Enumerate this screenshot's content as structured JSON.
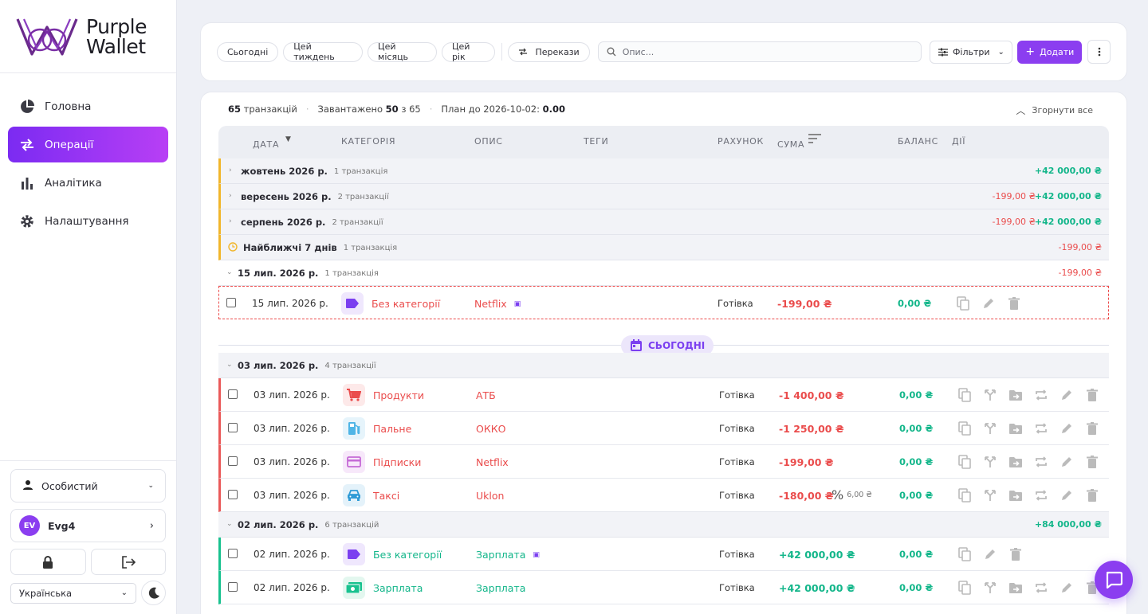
{
  "brand": {
    "line1": "Purple",
    "line2": "Wallet"
  },
  "nav": [
    {
      "label": "Головна",
      "icon": "pie-chart-icon"
    },
    {
      "label": "Операції",
      "icon": "swap-arrows-icon",
      "active": true
    },
    {
      "label": "Аналітика",
      "icon": "bar-chart-icon"
    },
    {
      "label": "Налаштування",
      "icon": "gear-icon"
    }
  ],
  "sidebar_bottom": {
    "profile": "Особистий",
    "user_initials": "EV",
    "user_name": "Evg4",
    "language": "Українська"
  },
  "toolbar": {
    "chips": [
      "Сьогодні",
      "Цей тиждень",
      "Цей місяць",
      "Цей рік"
    ],
    "transfers": "Перекази",
    "search_placeholder": "Опис...",
    "filters": "Фільтри",
    "add": "Додати"
  },
  "summary": {
    "count": "65",
    "count_label": "транзакцій",
    "loaded_label": "Завантажено",
    "loaded": "50",
    "of_label": "з",
    "total": "65",
    "plan_label": "План до 2026-10-02:",
    "plan_value": "0.00",
    "collapse_all": "Згорнути все"
  },
  "columns": [
    "Дата",
    "Категорія",
    "Опис",
    "Теги",
    "Рахунок",
    "Сума",
    "Баланс",
    "Дії"
  ],
  "groups_future": [
    {
      "label": "жовтень 2026 р.",
      "count": "1 транзакція",
      "neg": "",
      "pos": "+42 000,00 ₴"
    },
    {
      "label": "вересень 2026 р.",
      "count": "2 транзакції",
      "neg": "-199,00 ₴",
      "pos": "+42 000,00 ₴"
    },
    {
      "label": "серпень 2026 р.",
      "count": "2 транзакції",
      "neg": "-199,00 ₴",
      "pos": "+42 000,00 ₴"
    },
    {
      "label": "Найближчі 7 днів",
      "count": "1 транзакція",
      "neg": "-199,00 ₴",
      "pos": ""
    }
  ],
  "group_jul15": {
    "label": "15 лип. 2026 р.",
    "count": "1 транзакція",
    "neg": "-199,00 ₴"
  },
  "planned_tx": {
    "date": "15 лип. 2026 р.",
    "category": "Без категорії",
    "desc": "Netflix",
    "account": "Готівка",
    "sum": "-199,00 ₴",
    "balance": "0,00 ₴"
  },
  "today_label": "СЬОГОДНІ",
  "group_jul03": {
    "label": "03 лип. 2026 р.",
    "count": "4 транзакції"
  },
  "tx_jul03": [
    {
      "date": "03 лип. 2026 р.",
      "category": "Продукти",
      "icon": "cart-icon",
      "icon_color": "#ea4c4c",
      "icon_bg": "#fde9e9",
      "desc": "АТБ",
      "account": "Готівка",
      "sum": "-1 400,00 ₴",
      "balance": "0,00 ₴"
    },
    {
      "date": "03 лип. 2026 р.",
      "category": "Пальне",
      "icon": "fuel-icon",
      "icon_color": "#4fb5e6",
      "icon_bg": "#e6f4fb",
      "desc": "ОККО",
      "account": "Готівка",
      "sum": "-1 250,00 ₴",
      "balance": "0,00 ₴"
    },
    {
      "date": "03 лип. 2026 р.",
      "category": "Підписки",
      "icon": "card-icon",
      "icon_color": "#c56ad6",
      "icon_bg": "#f7e8fa",
      "desc": "Netflix",
      "account": "Готівка",
      "sum": "-199,00 ₴",
      "balance": "0,00 ₴"
    },
    {
      "date": "03 лип. 2026 р.",
      "category": "Таксі",
      "icon": "car-icon",
      "icon_color": "#2f9bd6",
      "icon_bg": "#e4f2fa",
      "desc": "Uklon",
      "account": "Готівка",
      "sum": "-180,00 ₴",
      "fee": "6,00 ₴",
      "balance": "0,00 ₴"
    }
  ],
  "group_jul02": {
    "label": "02 лип. 2026 р.",
    "count": "6 транзакцій",
    "pos": "+84 000,00 ₴"
  },
  "tx_jul02": [
    {
      "date": "02 лип. 2026 р.",
      "category": "Без категорії",
      "icon": "label-icon",
      "icon_color": "#7b3ff0",
      "icon_bg": "#efe7fd",
      "desc": "Зарплата",
      "account": "Готівка",
      "sum": "+42 000,00 ₴",
      "balance": "0,00 ₴"
    },
    {
      "date": "02 лип. 2026 р.",
      "category": "Зарплата",
      "icon": "money-icon",
      "icon_color": "#19c28f",
      "icon_bg": "#e3f7ef",
      "desc": "Зарплата",
      "account": "Готівка",
      "sum": "+42 000,00 ₴",
      "balance": "0,00 ₴"
    }
  ],
  "colors": {
    "accent": "#8b3ef0",
    "negative": "#ea4c4c",
    "positive": "#13b68a",
    "pending": "#f1b62c"
  }
}
